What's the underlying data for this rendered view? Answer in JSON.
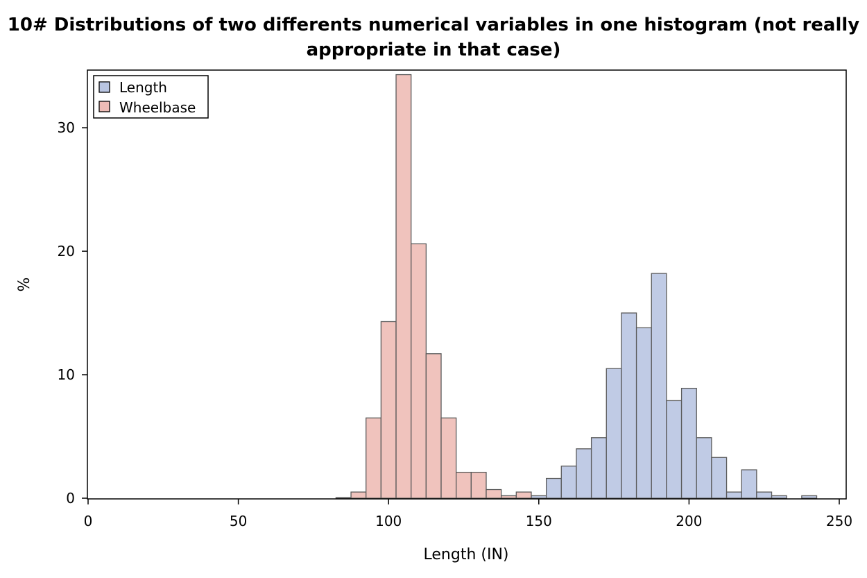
{
  "chart_data": {
    "type": "bar",
    "title": "10# Distributions of two differents numerical variables in one histogram (not really appropriate in that case)",
    "xlabel": "Length (IN)",
    "ylabel": "%",
    "xlim": [
      0,
      250
    ],
    "ylim": [
      0,
      34.5
    ],
    "xticks": [
      0,
      50,
      100,
      150,
      200,
      250
    ],
    "yticks": [
      0,
      10,
      20,
      30
    ],
    "legend": "top-left",
    "grid": false,
    "bin_width": 5,
    "series": [
      {
        "name": "Length",
        "color": "#b9c5e2",
        "bins": [
          {
            "x0": 147.5,
            "value": 0.2
          },
          {
            "x0": 152.5,
            "value": 1.6
          },
          {
            "x0": 157.5,
            "value": 2.6
          },
          {
            "x0": 162.5,
            "value": 4.0
          },
          {
            "x0": 167.5,
            "value": 4.9
          },
          {
            "x0": 172.5,
            "value": 10.5
          },
          {
            "x0": 177.5,
            "value": 15.0
          },
          {
            "x0": 182.5,
            "value": 13.8
          },
          {
            "x0": 187.5,
            "value": 18.2
          },
          {
            "x0": 192.5,
            "value": 7.9
          },
          {
            "x0": 197.5,
            "value": 8.9
          },
          {
            "x0": 202.5,
            "value": 4.9
          },
          {
            "x0": 207.5,
            "value": 3.3
          },
          {
            "x0": 212.5,
            "value": 0.5
          },
          {
            "x0": 217.5,
            "value": 2.3
          },
          {
            "x0": 222.5,
            "value": 0.5
          },
          {
            "x0": 227.5,
            "value": 0.2
          },
          {
            "x0": 237.5,
            "value": 0.2
          }
        ]
      },
      {
        "name": "Wheelbase",
        "color": "#eebcb6",
        "bins": [
          {
            "x0": 82.5,
            "value": 0.05
          },
          {
            "x0": 87.5,
            "value": 0.5
          },
          {
            "x0": 92.5,
            "value": 6.5
          },
          {
            "x0": 97.5,
            "value": 14.3
          },
          {
            "x0": 102.5,
            "value": 34.3
          },
          {
            "x0": 107.5,
            "value": 20.6
          },
          {
            "x0": 112.5,
            "value": 11.7
          },
          {
            "x0": 117.5,
            "value": 6.5
          },
          {
            "x0": 122.5,
            "value": 2.1
          },
          {
            "x0": 127.5,
            "value": 2.1
          },
          {
            "x0": 132.5,
            "value": 0.7
          },
          {
            "x0": 137.5,
            "value": 0.2
          },
          {
            "x0": 142.5,
            "value": 0.5
          }
        ]
      }
    ]
  }
}
